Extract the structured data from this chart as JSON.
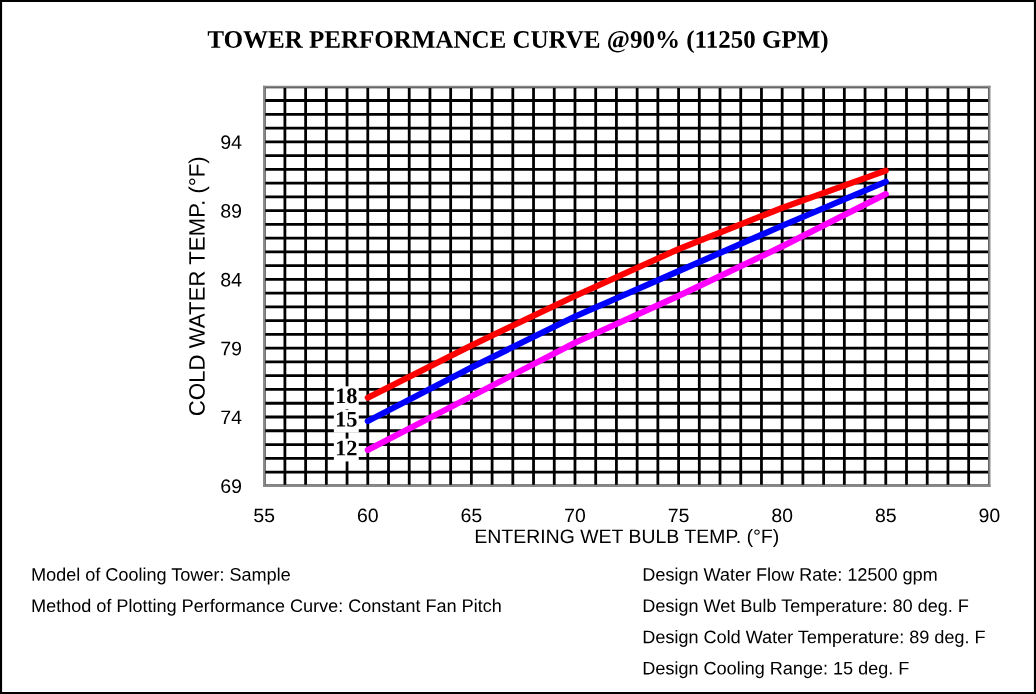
{
  "chart_data": {
    "type": "line",
    "title": "TOWER PERFORMANCE CURVE @90% (11250 GPM)",
    "xlabel": "ENTERING WET BULB TEMP. (°F)",
    "ylabel": "COLD WATER TEMP. (°F)",
    "x": [
      60,
      65,
      70,
      75,
      80,
      85
    ],
    "series": [
      {
        "name": "18",
        "color": "#ff0000",
        "values": [
          75.4,
          79.2,
          82.8,
          86.2,
          89.2,
          91.9
        ]
      },
      {
        "name": "15",
        "color": "#0000ff",
        "values": [
          73.7,
          77.6,
          81.3,
          84.6,
          87.9,
          91.1
        ]
      },
      {
        "name": "12",
        "color": "#ff00ff",
        "values": [
          71.6,
          75.5,
          79.4,
          82.8,
          86.4,
          90.2
        ]
      }
    ],
    "xlim": [
      55,
      90
    ],
    "ylim": [
      69,
      98
    ],
    "xticks": [
      55,
      {
        "value": 56,
        "label": null
      },
      {
        "value": 57,
        "label": null
      },
      {
        "value": 58,
        "label": null
      },
      {
        "value": 59,
        "label": null
      },
      60,
      {
        "value": 61,
        "label": null
      },
      {
        "value": 62,
        "label": null
      },
      {
        "value": 63,
        "label": null
      },
      {
        "value": 64,
        "label": null
      },
      65,
      {
        "value": 66,
        "label": null
      },
      {
        "value": 67,
        "label": null
      },
      {
        "value": 68,
        "label": null
      },
      {
        "value": 69,
        "label": null
      },
      70,
      {
        "value": 71,
        "label": null
      },
      {
        "value": 72,
        "label": null
      },
      {
        "value": 73,
        "label": null
      },
      {
        "value": 74,
        "label": null
      },
      75,
      {
        "value": 76,
        "label": null
      },
      {
        "value": 77,
        "label": null
      },
      {
        "value": 78,
        "label": null
      },
      {
        "value": 79,
        "label": null
      },
      80,
      {
        "value": 81,
        "label": null
      },
      {
        "value": 82,
        "label": null
      },
      {
        "value": 83,
        "label": null
      },
      {
        "value": 84,
        "label": null
      },
      85,
      {
        "value": 86,
        "label": null
      },
      {
        "value": 87,
        "label": null
      },
      {
        "value": 88,
        "label": null
      },
      {
        "value": 89,
        "label": null
      },
      90
    ],
    "yticks": [
      69,
      {
        "value": 70,
        "label": null
      },
      {
        "value": 71,
        "label": null
      },
      {
        "value": 72,
        "label": null
      },
      {
        "value": 73,
        "label": null
      },
      74,
      {
        "value": 75,
        "label": null
      },
      {
        "value": 76,
        "label": null
      },
      {
        "value": 77,
        "label": null
      },
      {
        "value": 78,
        "label": null
      },
      79,
      {
        "value": 80,
        "label": null
      },
      {
        "value": 81,
        "label": null
      },
      {
        "value": 82,
        "label": null
      },
      {
        "value": 83,
        "label": null
      },
      84,
      {
        "value": 85,
        "label": null
      },
      {
        "value": 86,
        "label": null
      },
      {
        "value": 87,
        "label": null
      },
      {
        "value": 88,
        "label": null
      },
      89,
      {
        "value": 90,
        "label": null
      },
      {
        "value": 91,
        "label": null
      },
      {
        "value": 92,
        "label": null
      },
      {
        "value": 93,
        "label": null
      },
      94,
      {
        "value": 95,
        "label": null
      },
      {
        "value": 96,
        "label": null
      },
      {
        "value": 97,
        "label": null
      },
      {
        "value": 98,
        "label": null
      }
    ],
    "grid": true,
    "legend": false,
    "annotations": [
      "Model of Cooling Tower: Sample",
      "Method of Plotting Performance Curve: Constant Fan Pitch",
      "Design Water Flow Rate: 12500 gpm",
      "Design Wet Bulb Temperature: 80 deg. F",
      "Design Cold Water Temperature: 89 deg. F",
      "Design Cooling Range: 15 deg. F"
    ]
  }
}
